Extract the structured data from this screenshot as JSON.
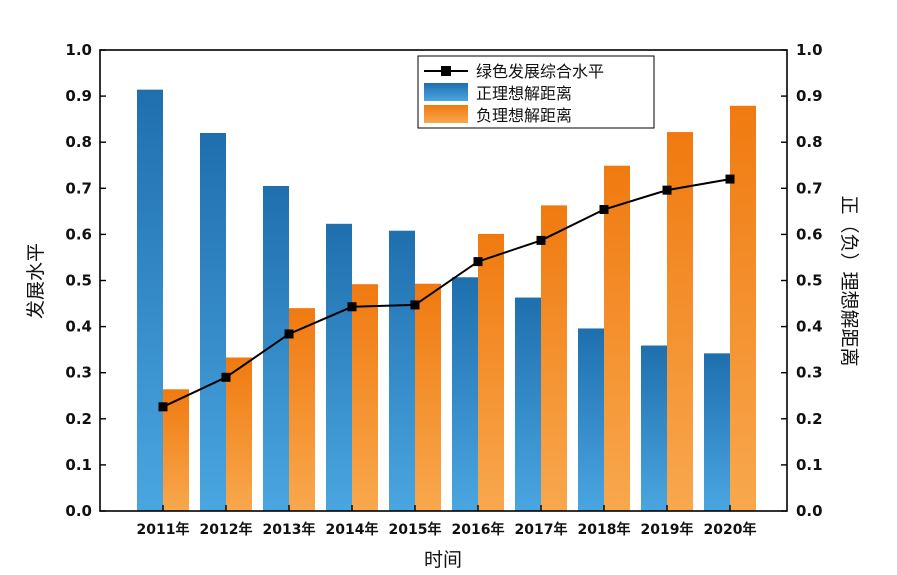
{
  "chart_data": {
    "type": "bar",
    "categories": [
      "2011年",
      "2012年",
      "2013年",
      "2014年",
      "2015年",
      "2016年",
      "2017年",
      "2018年",
      "2019年",
      "2020年"
    ],
    "series": [
      {
        "name": "绿色发展综合水平",
        "kind": "line",
        "axis": "left",
        "color": "#000000",
        "marker": "square",
        "values": [
          0.226,
          0.29,
          0.384,
          0.443,
          0.447,
          0.541,
          0.587,
          0.654,
          0.696,
          0.72
        ]
      },
      {
        "name": "正理想解距离",
        "kind": "bar",
        "axis": "right",
        "color_top": "#1f6fae",
        "color_bottom": "#4aa6e0",
        "values": [
          0.914,
          0.82,
          0.705,
          0.623,
          0.608,
          0.507,
          0.463,
          0.396,
          0.359,
          0.342
        ]
      },
      {
        "name": "负理想解距离",
        "kind": "bar",
        "axis": "right",
        "color_top": "#f07a10",
        "color_bottom": "#f8a84e",
        "values": [
          0.264,
          0.333,
          0.44,
          0.492,
          0.493,
          0.601,
          0.663,
          0.749,
          0.822,
          0.879
        ]
      }
    ],
    "xlabel": "时间",
    "ylabel": "发展水平",
    "ylabel_right": "正（负）理想解距离",
    "ylim": [
      0,
      1.0
    ],
    "ylim_right": [
      0,
      1.0
    ],
    "yticks": [
      "0.0",
      "0.1",
      "0.2",
      "0.3",
      "0.4",
      "0.5",
      "0.6",
      "0.7",
      "0.8",
      "0.9",
      "1.0"
    ],
    "legend_position": "top-right",
    "grid": false
  }
}
